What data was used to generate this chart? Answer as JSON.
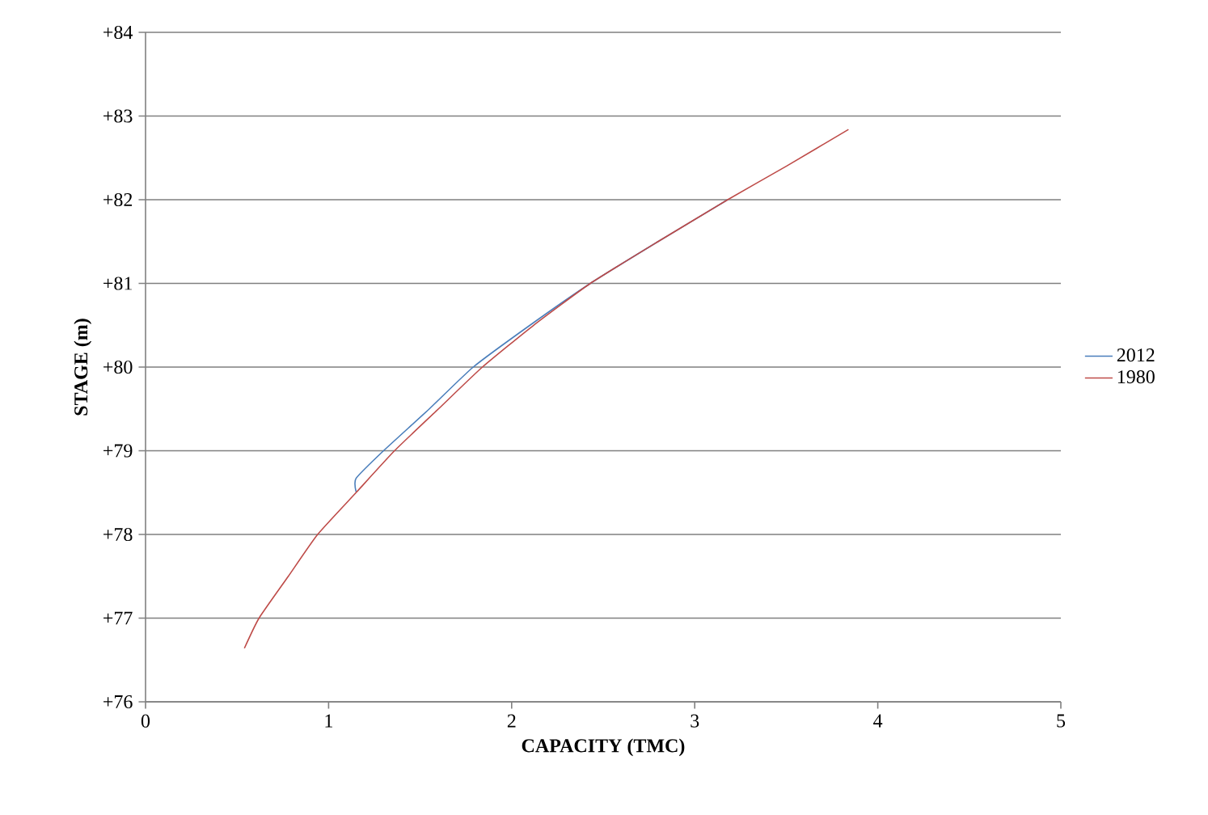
{
  "chart_data": {
    "type": "line",
    "xlabel": "CAPACITY (TMC)",
    "ylabel": "STAGE (m)",
    "xlim": [
      0,
      5
    ],
    "xticks": [
      0,
      1,
      2,
      3,
      4,
      5
    ],
    "ylim": [
      76,
      84
    ],
    "yticks": [
      {
        "value": 76,
        "label": "+76"
      },
      {
        "value": 77,
        "label": "+77"
      },
      {
        "value": 78,
        "label": "+78"
      },
      {
        "value": 79,
        "label": "+79"
      },
      {
        "value": 80,
        "label": "+80"
      },
      {
        "value": 81,
        "label": "+81"
      },
      {
        "value": 82,
        "label": "+82"
      },
      {
        "value": 83,
        "label": "+83"
      },
      {
        "value": 84,
        "label": "+84"
      }
    ],
    "grid": "y",
    "legend": "right",
    "marker": "none",
    "series": [
      {
        "name": "2012",
        "color": "#4a7ebb",
        "x": [
          1.15,
          1.15,
          1.3,
          1.55,
          1.79,
          2.1,
          2.43,
          2.8,
          3.18
        ],
        "values": [
          78.51,
          78.67,
          79,
          79.5,
          80,
          80.5,
          81,
          81.5,
          82
        ]
      },
      {
        "name": "1980",
        "color": "#be4b48",
        "x": [
          0.54,
          0.62,
          0.78,
          0.94,
          1.15,
          1.36,
          1.6,
          1.84,
          2.12,
          2.43,
          2.8,
          3.18,
          3.5,
          3.84
        ],
        "values": [
          76.64,
          77,
          77.5,
          78,
          78.5,
          79,
          79.5,
          80,
          80.5,
          81,
          81.5,
          82,
          82.4,
          82.84
        ]
      }
    ]
  }
}
